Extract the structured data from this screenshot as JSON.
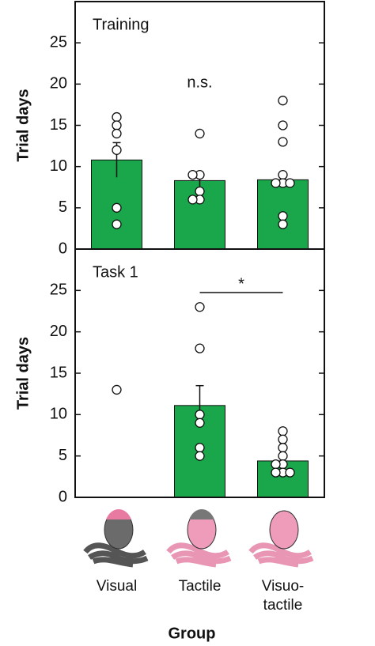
{
  "chart_data": [
    {
      "type": "bar",
      "title": "Training",
      "ylabel": "Trial days",
      "annotation": "n.s.",
      "values": [
        10.8,
        8.3,
        8.4
      ],
      "errors": [
        2.1,
        0.7,
        0.8
      ],
      "color": "#1aa64a",
      "points": [
        [
          16,
          15,
          14,
          12,
          5,
          3
        ],
        [
          14,
          9,
          9,
          7,
          6,
          6
        ],
        [
          18,
          15,
          13,
          9,
          8,
          8,
          8,
          4,
          3
        ]
      ],
      "ylim": [
        0,
        30
      ],
      "yticks": [
        0,
        5,
        10,
        15,
        20,
        25
      ]
    },
    {
      "type": "bar",
      "title": "Task 1",
      "ylabel": "Trial days",
      "xlabel": "Group",
      "categories": [
        "Visual",
        "Tactile",
        "Visuo-tactile"
      ],
      "significance": {
        "text": "*",
        "between": [
          "Tactile",
          "Visuo-tactile"
        ]
      },
      "values": [
        null,
        11.1,
        4.4
      ],
      "errors": [
        null,
        2.4,
        0.6
      ],
      "color": "#1aa64a",
      "points": [
        [
          13
        ],
        [
          23,
          18,
          10,
          9,
          6,
          5
        ],
        [
          8,
          7,
          6,
          5,
          4,
          4,
          3,
          3,
          3
        ]
      ],
      "ylim": [
        0,
        30
      ],
      "yticks": [
        0,
        5,
        10,
        15,
        20,
        25
      ]
    }
  ]
}
